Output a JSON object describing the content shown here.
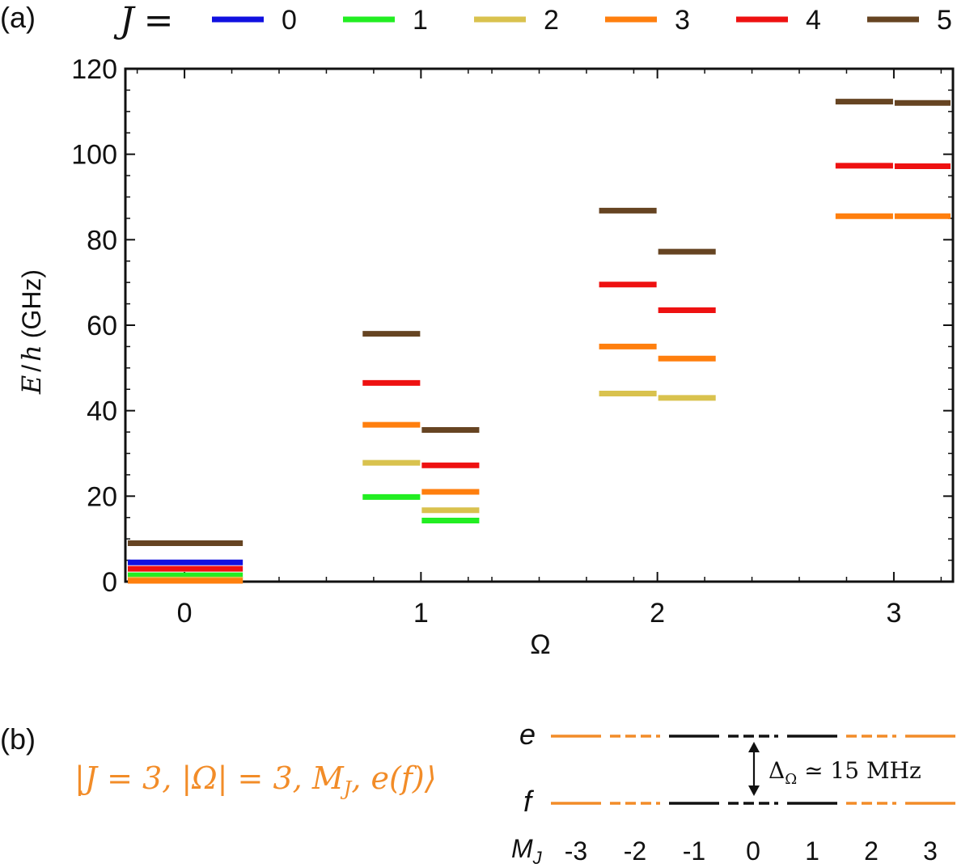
{
  "panel_a": {
    "label": "(a)",
    "legend_prefix_var": "J",
    "legend_prefix_eq": "=",
    "legend": [
      {
        "name": "0",
        "color": "#1010e0"
      },
      {
        "name": "1",
        "color": "#22ee22"
      },
      {
        "name": "2",
        "color": "#d9c24e"
      },
      {
        "name": "3",
        "color": "#ff7f0e"
      },
      {
        "name": "4",
        "color": "#ee1111"
      },
      {
        "name": "5",
        "color": "#664422"
      }
    ]
  },
  "chart_data": {
    "type": "scatter",
    "mark": "horizontal level segments",
    "xlabel": "Ω",
    "ylabel_var_e": "E",
    "ylabel_slash": "/",
    "ylabel_var_h": "h",
    "ylabel_unit": "(GHz)",
    "xlim": [
      -0.25,
      3.25
    ],
    "ylim": [
      0,
      120
    ],
    "xticks": [
      0,
      1,
      2,
      3
    ],
    "yticks": [
      0,
      20,
      40,
      60,
      80,
      100,
      120
    ],
    "segment_half_width": 0.25,
    "levels": [
      {
        "omega": 0,
        "side": "both",
        "J": 0,
        "E": 4.5
      },
      {
        "omega": 0,
        "side": "both",
        "J": 1,
        "E": 1.5
      },
      {
        "omega": 0,
        "side": "both",
        "J": 2,
        "E": 0.5
      },
      {
        "omega": 0,
        "side": "both",
        "J": 3,
        "E": 0.2
      },
      {
        "omega": 0,
        "side": "both",
        "J": 4,
        "E": 3.0
      },
      {
        "omega": 0,
        "side": "both",
        "J": 5,
        "E": 9.0
      },
      {
        "omega": 1,
        "side": "left",
        "J": 1,
        "E": 19.8
      },
      {
        "omega": 1,
        "side": "left",
        "J": 2,
        "E": 27.8
      },
      {
        "omega": 1,
        "side": "left",
        "J": 3,
        "E": 36.7
      },
      {
        "omega": 1,
        "side": "left",
        "J": 4,
        "E": 46.5
      },
      {
        "omega": 1,
        "side": "left",
        "J": 5,
        "E": 58.0
      },
      {
        "omega": 1,
        "side": "right",
        "J": 1,
        "E": 14.3
      },
      {
        "omega": 1,
        "side": "right",
        "J": 2,
        "E": 16.7
      },
      {
        "omega": 1,
        "side": "right",
        "J": 3,
        "E": 21.0
      },
      {
        "omega": 1,
        "side": "right",
        "J": 4,
        "E": 27.2
      },
      {
        "omega": 1,
        "side": "right",
        "J": 5,
        "E": 35.5
      },
      {
        "omega": 2,
        "side": "left",
        "J": 2,
        "E": 44.0
      },
      {
        "omega": 2,
        "side": "left",
        "J": 3,
        "E": 55.0
      },
      {
        "omega": 2,
        "side": "left",
        "J": 4,
        "E": 69.5
      },
      {
        "omega": 2,
        "side": "left",
        "J": 5,
        "E": 86.8
      },
      {
        "omega": 2,
        "side": "right",
        "J": 2,
        "E": 43.0
      },
      {
        "omega": 2,
        "side": "right",
        "J": 3,
        "E": 52.2
      },
      {
        "omega": 2,
        "side": "right",
        "J": 4,
        "E": 63.5
      },
      {
        "omega": 2,
        "side": "right",
        "J": 5,
        "E": 77.2
      },
      {
        "omega": 3,
        "side": "left",
        "J": 3,
        "E": 85.5
      },
      {
        "omega": 3,
        "side": "left",
        "J": 4,
        "E": 97.3
      },
      {
        "omega": 3,
        "side": "left",
        "J": 5,
        "E": 112.3
      },
      {
        "omega": 3,
        "side": "right",
        "J": 3,
        "E": 85.5
      },
      {
        "omega": 3,
        "side": "right",
        "J": 4,
        "E": 97.2
      },
      {
        "omega": 3,
        "side": "right",
        "J": 5,
        "E": 112.0
      }
    ]
  },
  "panel_b": {
    "label": "(b)",
    "ket": "|J = 3, |Ω| = 3, M",
    "ket_sub": "J",
    "ket_tail": ", e(f)⟩",
    "ket_color": "#f28c28",
    "upper_label": "e",
    "lower_label": "f",
    "mj_label": "M",
    "mj_sub": "J",
    "mj_values": [
      "-3",
      "-2",
      "-1",
      "0",
      "1",
      "2",
      "3"
    ],
    "splitting_label": "Δ",
    "splitting_sub": "Ω",
    "splitting_tail": " ≃ 15 MHz",
    "level_styles": [
      {
        "mj": "-3",
        "color": "#f28c28",
        "dashed": false
      },
      {
        "mj": "-2",
        "color": "#f28c28",
        "dashed": true
      },
      {
        "mj": "-1",
        "color": "#111111",
        "dashed": false
      },
      {
        "mj": "0",
        "color": "#111111",
        "dashed": true
      },
      {
        "mj": "1",
        "color": "#111111",
        "dashed": false
      },
      {
        "mj": "2",
        "color": "#f28c28",
        "dashed": true
      },
      {
        "mj": "3",
        "color": "#f28c28",
        "dashed": false
      }
    ]
  }
}
